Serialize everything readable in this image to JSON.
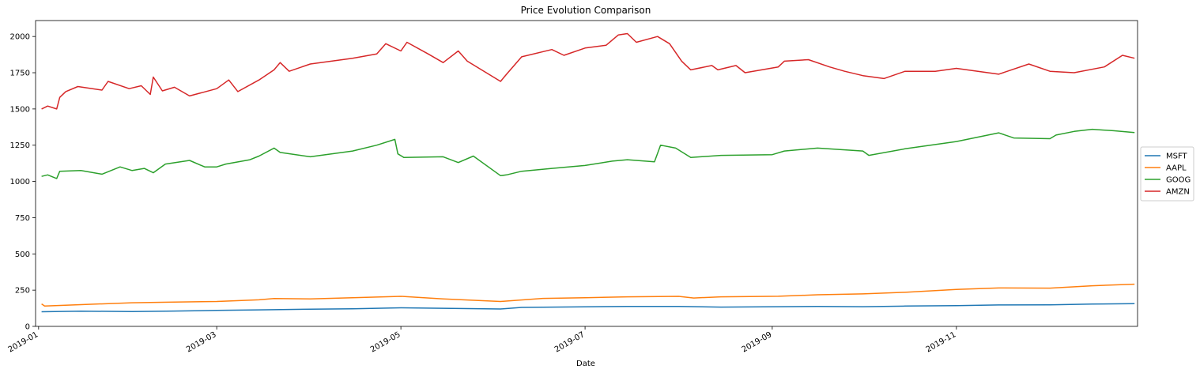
{
  "chart_data": {
    "type": "line",
    "title": "Price Evolution Comparison",
    "xlabel": "Date",
    "ylabel": "",
    "xlim": [
      "2018-12-31",
      "2019-12-31"
    ],
    "ylim": [
      0,
      2110
    ],
    "x_ticks": [
      {
        "date": "2019-01-01",
        "label": "2019-01"
      },
      {
        "date": "2019-03-01",
        "label": "2019-03"
      },
      {
        "date": "2019-05-01",
        "label": "2019-05"
      },
      {
        "date": "2019-07-01",
        "label": "2019-07"
      },
      {
        "date": "2019-09-01",
        "label": "2019-09"
      },
      {
        "date": "2019-11-01",
        "label": "2019-11"
      }
    ],
    "y_ticks": [
      0,
      250,
      500,
      750,
      1000,
      1250,
      1500,
      1750,
      2000
    ],
    "grid": false,
    "legend_position": "center-right",
    "series": [
      {
        "name": "MSFT",
        "color": "#1f77b4",
        "points": [
          [
            "2019-01-02",
            101
          ],
          [
            "2019-01-15",
            105
          ],
          [
            "2019-02-01",
            102
          ],
          [
            "2019-02-15",
            106
          ],
          [
            "2019-03-01",
            110
          ],
          [
            "2019-03-15",
            114
          ],
          [
            "2019-04-01",
            119
          ],
          [
            "2019-04-15",
            121
          ],
          [
            "2019-05-01",
            128
          ],
          [
            "2019-05-15",
            125
          ],
          [
            "2019-06-03",
            120
          ],
          [
            "2019-06-10",
            131
          ],
          [
            "2019-07-01",
            135
          ],
          [
            "2019-07-15",
            138
          ],
          [
            "2019-08-01",
            138
          ],
          [
            "2019-08-15",
            133
          ],
          [
            "2019-09-03",
            136
          ],
          [
            "2019-09-16",
            138
          ],
          [
            "2019-10-01",
            136
          ],
          [
            "2019-10-15",
            140
          ],
          [
            "2019-11-01",
            143
          ],
          [
            "2019-11-15",
            148
          ],
          [
            "2019-12-02",
            149
          ],
          [
            "2019-12-16",
            154
          ],
          [
            "2019-12-30",
            157
          ]
        ]
      },
      {
        "name": "AAPL",
        "color": "#ff7f0e",
        "points": [
          [
            "2019-01-02",
            155
          ],
          [
            "2019-01-03",
            140
          ],
          [
            "2019-01-15",
            150
          ],
          [
            "2019-02-01",
            163
          ],
          [
            "2019-02-15",
            168
          ],
          [
            "2019-03-01",
            172
          ],
          [
            "2019-03-15",
            183
          ],
          [
            "2019-03-20",
            192
          ],
          [
            "2019-04-01",
            189
          ],
          [
            "2019-04-15",
            198
          ],
          [
            "2019-05-01",
            207
          ],
          [
            "2019-05-15",
            190
          ],
          [
            "2019-06-03",
            172
          ],
          [
            "2019-06-17",
            193
          ],
          [
            "2019-07-01",
            198
          ],
          [
            "2019-07-15",
            204
          ],
          [
            "2019-08-01",
            207
          ],
          [
            "2019-08-06",
            196
          ],
          [
            "2019-08-15",
            204
          ],
          [
            "2019-09-03",
            208
          ],
          [
            "2019-09-16",
            218
          ],
          [
            "2019-10-01",
            224
          ],
          [
            "2019-10-15",
            235
          ],
          [
            "2019-11-01",
            255
          ],
          [
            "2019-11-15",
            265
          ],
          [
            "2019-12-02",
            264
          ],
          [
            "2019-12-16",
            280
          ],
          [
            "2019-12-30",
            291
          ]
        ]
      },
      {
        "name": "GOOG",
        "color": "#2ca02c",
        "points": [
          [
            "2019-01-02",
            1035
          ],
          [
            "2019-01-04",
            1045
          ],
          [
            "2019-01-07",
            1020
          ],
          [
            "2019-01-08",
            1070
          ],
          [
            "2019-01-15",
            1075
          ],
          [
            "2019-01-22",
            1050
          ],
          [
            "2019-01-28",
            1100
          ],
          [
            "2019-02-01",
            1075
          ],
          [
            "2019-02-05",
            1090
          ],
          [
            "2019-02-08",
            1060
          ],
          [
            "2019-02-12",
            1120
          ],
          [
            "2019-02-20",
            1145
          ],
          [
            "2019-02-25",
            1100
          ],
          [
            "2019-03-01",
            1100
          ],
          [
            "2019-03-04",
            1120
          ],
          [
            "2019-03-12",
            1150
          ],
          [
            "2019-03-15",
            1175
          ],
          [
            "2019-03-20",
            1230
          ],
          [
            "2019-03-22",
            1200
          ],
          [
            "2019-04-01",
            1170
          ],
          [
            "2019-04-15",
            1210
          ],
          [
            "2019-04-23",
            1250
          ],
          [
            "2019-04-29",
            1290
          ],
          [
            "2019-04-30",
            1190
          ],
          [
            "2019-05-02",
            1165
          ],
          [
            "2019-05-15",
            1170
          ],
          [
            "2019-05-20",
            1130
          ],
          [
            "2019-05-25",
            1175
          ],
          [
            "2019-06-03",
            1040
          ],
          [
            "2019-06-05",
            1045
          ],
          [
            "2019-06-10",
            1070
          ],
          [
            "2019-06-20",
            1090
          ],
          [
            "2019-07-01",
            1110
          ],
          [
            "2019-07-10",
            1140
          ],
          [
            "2019-07-15",
            1150
          ],
          [
            "2019-07-24",
            1135
          ],
          [
            "2019-07-26",
            1250
          ],
          [
            "2019-07-31",
            1230
          ],
          [
            "2019-08-05",
            1165
          ],
          [
            "2019-08-15",
            1180
          ],
          [
            "2019-09-01",
            1185
          ],
          [
            "2019-09-05",
            1210
          ],
          [
            "2019-09-16",
            1230
          ],
          [
            "2019-10-01",
            1210
          ],
          [
            "2019-10-03",
            1180
          ],
          [
            "2019-10-15",
            1225
          ],
          [
            "2019-11-01",
            1275
          ],
          [
            "2019-11-15",
            1335
          ],
          [
            "2019-11-20",
            1300
          ],
          [
            "2019-12-02",
            1295
          ],
          [
            "2019-12-04",
            1320
          ],
          [
            "2019-12-10",
            1345
          ],
          [
            "2019-12-16",
            1360
          ],
          [
            "2019-12-23",
            1350
          ],
          [
            "2019-12-30",
            1337
          ]
        ]
      },
      {
        "name": "AMZN",
        "color": "#d62728",
        "points": [
          [
            "2019-01-02",
            1500
          ],
          [
            "2019-01-04",
            1520
          ],
          [
            "2019-01-07",
            1500
          ],
          [
            "2019-01-08",
            1580
          ],
          [
            "2019-01-10",
            1620
          ],
          [
            "2019-01-14",
            1655
          ],
          [
            "2019-01-22",
            1630
          ],
          [
            "2019-01-24",
            1690
          ],
          [
            "2019-01-31",
            1640
          ],
          [
            "2019-02-04",
            1660
          ],
          [
            "2019-02-07",
            1600
          ],
          [
            "2019-02-08",
            1720
          ],
          [
            "2019-02-11",
            1625
          ],
          [
            "2019-02-15",
            1650
          ],
          [
            "2019-02-20",
            1590
          ],
          [
            "2019-03-01",
            1640
          ],
          [
            "2019-03-05",
            1700
          ],
          [
            "2019-03-08",
            1620
          ],
          [
            "2019-03-15",
            1700
          ],
          [
            "2019-03-20",
            1770
          ],
          [
            "2019-03-22",
            1820
          ],
          [
            "2019-03-25",
            1760
          ],
          [
            "2019-04-01",
            1810
          ],
          [
            "2019-04-15",
            1850
          ],
          [
            "2019-04-23",
            1880
          ],
          [
            "2019-04-26",
            1950
          ],
          [
            "2019-05-01",
            1900
          ],
          [
            "2019-05-03",
            1960
          ],
          [
            "2019-05-10",
            1880
          ],
          [
            "2019-05-15",
            1820
          ],
          [
            "2019-05-20",
            1900
          ],
          [
            "2019-05-23",
            1830
          ],
          [
            "2019-06-03",
            1690
          ],
          [
            "2019-06-05",
            1740
          ],
          [
            "2019-06-10",
            1860
          ],
          [
            "2019-06-20",
            1910
          ],
          [
            "2019-06-24",
            1870
          ],
          [
            "2019-07-01",
            1920
          ],
          [
            "2019-07-08",
            1940
          ],
          [
            "2019-07-12",
            2010
          ],
          [
            "2019-07-15",
            2020
          ],
          [
            "2019-07-18",
            1960
          ],
          [
            "2019-07-25",
            2000
          ],
          [
            "2019-07-29",
            1950
          ],
          [
            "2019-08-02",
            1830
          ],
          [
            "2019-08-05",
            1770
          ],
          [
            "2019-08-12",
            1800
          ],
          [
            "2019-08-14",
            1770
          ],
          [
            "2019-08-20",
            1800
          ],
          [
            "2019-08-23",
            1750
          ],
          [
            "2019-09-03",
            1790
          ],
          [
            "2019-09-05",
            1830
          ],
          [
            "2019-09-13",
            1840
          ],
          [
            "2019-09-20",
            1790
          ],
          [
            "2019-09-25",
            1760
          ],
          [
            "2019-10-01",
            1730
          ],
          [
            "2019-10-08",
            1710
          ],
          [
            "2019-10-15",
            1760
          ],
          [
            "2019-10-25",
            1760
          ],
          [
            "2019-11-01",
            1780
          ],
          [
            "2019-11-15",
            1740
          ],
          [
            "2019-11-25",
            1810
          ],
          [
            "2019-12-02",
            1760
          ],
          [
            "2019-12-10",
            1750
          ],
          [
            "2019-12-20",
            1790
          ],
          [
            "2019-12-26",
            1870
          ],
          [
            "2019-12-30",
            1850
          ]
        ]
      }
    ]
  }
}
